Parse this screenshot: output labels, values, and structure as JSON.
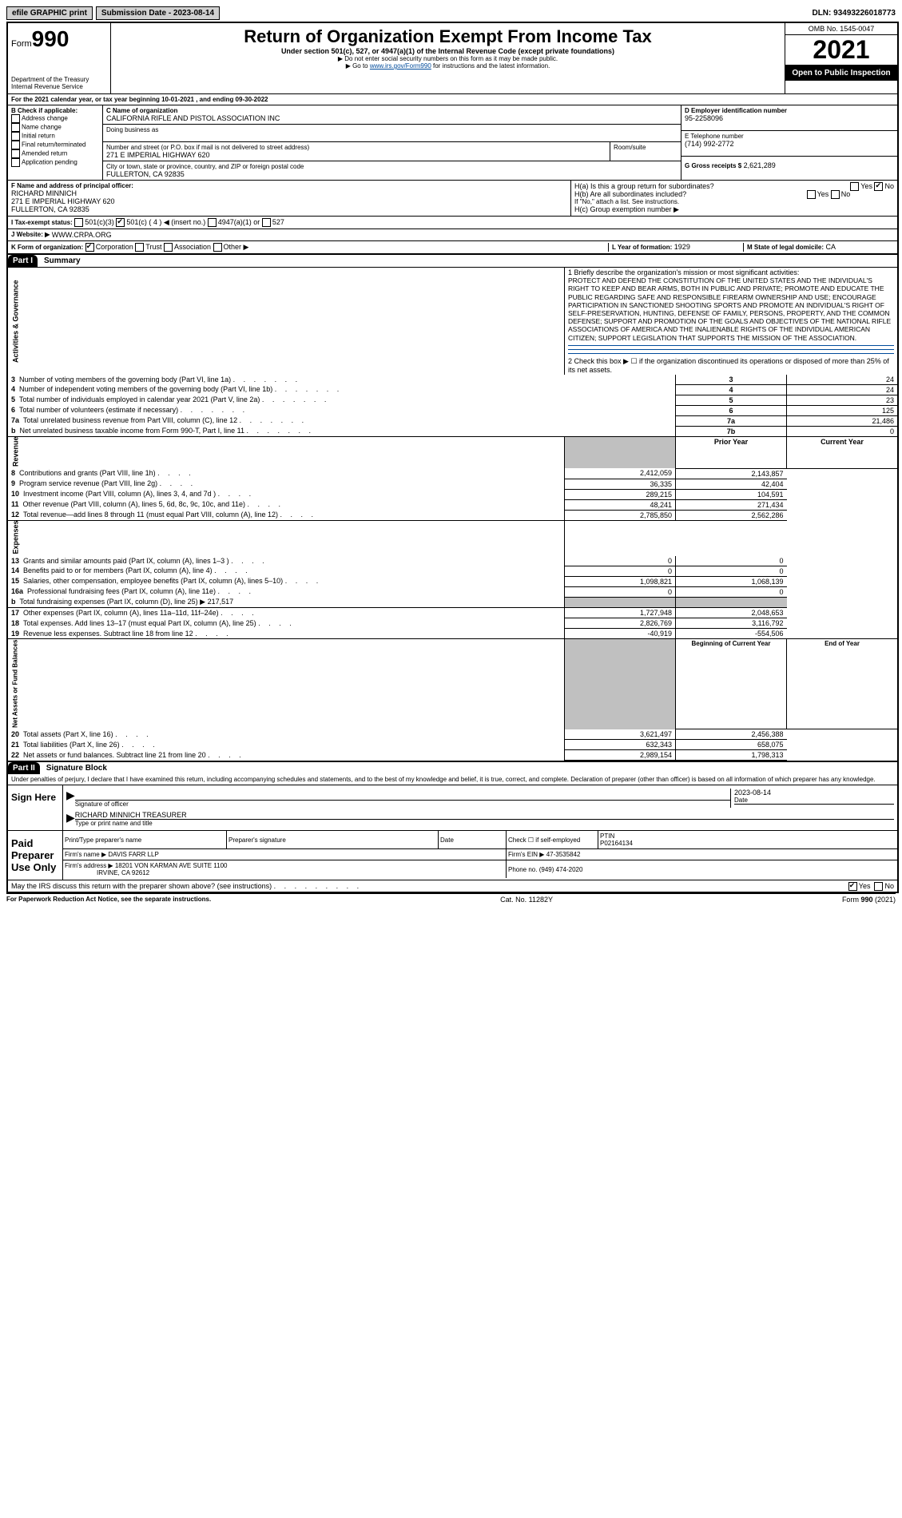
{
  "header": {
    "efile_label": "efile GRAPHIC print",
    "submission_label": "Submission Date - 2023-08-14",
    "dln_label": "DLN: 93493226018773"
  },
  "form_header": {
    "form_prefix": "Form",
    "form_number": "990",
    "dept": "Department of the Treasury Internal Revenue Service",
    "title": "Return of Organization Exempt From Income Tax",
    "subtitle": "Under section 501(c), 527, or 4947(a)(1) of the Internal Revenue Code (except private foundations)",
    "note1": "▶ Do not enter social security numbers on this form as it may be made public.",
    "note2_pre": "▶ Go to ",
    "note2_link": "www.irs.gov/Form990",
    "note2_post": " for instructions and the latest information.",
    "omb": "OMB No. 1545-0047",
    "year": "2021",
    "open_public": "Open to Public Inspection"
  },
  "line_A": "For the 2021 calendar year, or tax year beginning 10-01-2021  , and ending 09-30-2022",
  "box_B": {
    "header": "B Check if applicable:",
    "items": [
      "Address change",
      "Name change",
      "Initial return",
      "Final return/terminated",
      "Amended return",
      "Application pending"
    ]
  },
  "box_C": {
    "name_label": "C Name of organization",
    "name": "CALIFORNIA RIFLE AND PISTOL ASSOCIATION INC",
    "dba_label": "Doing business as",
    "dba": "",
    "addr_label": "Number and street (or P.O. box if mail is not delivered to street address)",
    "addr": "271 E IMPERIAL HIGHWAY 620",
    "room_label": "Room/suite",
    "room": "",
    "city_label": "City or town, state or province, country, and ZIP or foreign postal code",
    "city": "FULLERTON, CA  92835"
  },
  "box_D": {
    "label": "D Employer identification number",
    "val": "95-2258096"
  },
  "box_E": {
    "label": "E Telephone number",
    "val": "(714) 992-2772"
  },
  "box_G": {
    "label": "G Gross receipts $",
    "val": "2,621,289"
  },
  "box_F": {
    "label": "F  Name and address of principal officer:",
    "name": "RICHARD MINNICH",
    "addr1": "271 E IMPERIAL HIGHWAY 620",
    "addr2": "FULLERTON, CA  92835"
  },
  "box_H": {
    "a_label": "H(a)  Is this a group return for subordinates?",
    "b_label": "H(b)  Are all subordinates included?",
    "b_note": "If \"No,\" attach a list. See instructions.",
    "c_label": "H(c)  Group exemption number ▶",
    "yes": "Yes",
    "no": "No"
  },
  "line_I": {
    "label": "I    Tax-exempt status:",
    "opt1": "501(c)(3)",
    "opt2": "501(c) ( 4 ) ◀ (insert no.)",
    "opt3": "4947(a)(1) or",
    "opt4": "527"
  },
  "line_J": {
    "label": "J    Website: ▶",
    "val": "WWW.CRPA.ORG"
  },
  "line_K": {
    "label": "K Form of organization:",
    "opts": [
      "Corporation",
      "Trust",
      "Association",
      "Other ▶"
    ]
  },
  "line_L": {
    "label": "L Year of formation:",
    "val": "1929"
  },
  "line_M": {
    "label": "M State of legal domicile:",
    "val": "CA"
  },
  "partI": {
    "header": "Part I",
    "title": "Summary",
    "vert_labels": [
      "Activities & Governance",
      "Revenue",
      "Expenses",
      "Net Assets or Fund Balances"
    ],
    "line1_label": "1   Briefly describe the organization's mission or most significant activities:",
    "mission": "PROTECT AND DEFEND THE CONSTITUTION OF THE UNITED STATES AND THE INDIVIDUAL'S RIGHT TO KEEP AND BEAR ARMS, BOTH IN PUBLIC AND PRIVATE; PROMOTE AND EDUCATE THE PUBLIC REGARDING SAFE AND RESPONSIBLE FIREARM OWNERSHIP AND USE; ENCOURAGE PARTICIPATION IN SANCTIONED SHOOTING SPORTS AND PROMOTE AN INDIVIDUAL'S RIGHT OF SELF-PRESERVATION, HUNTING, DEFENSE OF FAMILY, PERSONS, PROPERTY, AND THE COMMON DEFENSE; SUPPORT AND PROMOTION OF THE GOALS AND OBJECTIVES OF THE NATIONAL RIFLE ASSOCIATIONS OF AMERICA AND THE INALIENABLE RIGHTS OF THE INDIVIDUAL AMERICAN CITIZEN; SUPPORT LEGISLATION THAT SUPPORTS THE MISSION OF THE ASSOCIATION.",
    "line2": "2   Check this box ▶ ☐ if the organization discontinued its operations or disposed of more than 25% of its net assets.",
    "rows_single": [
      {
        "n": "3",
        "label": "Number of voting members of the governing body (Part VI, line 1a)",
        "box": "3",
        "val": "24"
      },
      {
        "n": "4",
        "label": "Number of independent voting members of the governing body (Part VI, line 1b)",
        "box": "4",
        "val": "24"
      },
      {
        "n": "5",
        "label": "Total number of individuals employed in calendar year 2021 (Part V, line 2a)",
        "box": "5",
        "val": "23"
      },
      {
        "n": "6",
        "label": "Total number of volunteers (estimate if necessary)",
        "box": "6",
        "val": "125"
      },
      {
        "n": "7a",
        "label": "Total unrelated business revenue from Part VIII, column (C), line 12",
        "box": "7a",
        "val": "21,486"
      },
      {
        "n": " b",
        "label": "Net unrelated business taxable income from Form 990-T, Part I, line 11",
        "box": "7b",
        "val": "0"
      }
    ],
    "col_headers": {
      "prior": "Prior Year",
      "current": "Current Year"
    },
    "rows_double": [
      {
        "n": "8",
        "label": "Contributions and grants (Part VIII, line 1h)",
        "p": "2,412,059",
        "c": "2,143,857"
      },
      {
        "n": "9",
        "label": "Program service revenue (Part VIII, line 2g)",
        "p": "36,335",
        "c": "42,404"
      },
      {
        "n": "10",
        "label": "Investment income (Part VIII, column (A), lines 3, 4, and 7d )",
        "p": "289,215",
        "c": "104,591"
      },
      {
        "n": "11",
        "label": "Other revenue (Part VIII, column (A), lines 5, 6d, 8c, 9c, 10c, and 11e)",
        "p": "48,241",
        "c": "271,434"
      },
      {
        "n": "12",
        "label": "Total revenue—add lines 8 through 11 (must equal Part VIII, column (A), line 12)",
        "p": "2,785,850",
        "c": "2,562,286"
      },
      {
        "n": "13",
        "label": "Grants and similar amounts paid (Part IX, column (A), lines 1–3 )",
        "p": "0",
        "c": "0"
      },
      {
        "n": "14",
        "label": "Benefits paid to or for members (Part IX, column (A), line 4)",
        "p": "0",
        "c": "0"
      },
      {
        "n": "15",
        "label": "Salaries, other compensation, employee benefits (Part IX, column (A), lines 5–10)",
        "p": "1,098,821",
        "c": "1,068,139"
      },
      {
        "n": "16a",
        "label": "Professional fundraising fees (Part IX, column (A), line 11e)",
        "p": "0",
        "c": "0"
      }
    ],
    "line16b": {
      "n": "b",
      "label": "Total fundraising expenses (Part IX, column (D), line 25) ▶",
      "val": "217,517"
    },
    "rows_double2": [
      {
        "n": "17",
        "label": "Other expenses (Part IX, column (A), lines 11a–11d, 11f–24e)",
        "p": "1,727,948",
        "c": "2,048,653"
      },
      {
        "n": "18",
        "label": "Total expenses. Add lines 13–17 (must equal Part IX, column (A), line 25)",
        "p": "2,826,769",
        "c": "3,116,792"
      },
      {
        "n": "19",
        "label": "Revenue less expenses. Subtract line 18 from line 12",
        "p": "-40,919",
        "c": "-554,506"
      }
    ],
    "col_headers2": {
      "begin": "Beginning of Current Year",
      "end": "End of Year"
    },
    "rows_net": [
      {
        "n": "20",
        "label": "Total assets (Part X, line 16)",
        "p": "3,621,497",
        "c": "2,456,388"
      },
      {
        "n": "21",
        "label": "Total liabilities (Part X, line 26)",
        "p": "632,343",
        "c": "658,075"
      },
      {
        "n": "22",
        "label": "Net assets or fund balances. Subtract line 21 from line 20",
        "p": "2,989,154",
        "c": "1,798,313"
      }
    ]
  },
  "partII": {
    "header": "Part II",
    "title": "Signature Block",
    "declaration": "Under penalties of perjury, I declare that I have examined this return, including accompanying schedules and statements, and to the best of my knowledge and belief, it is true, correct, and complete. Declaration of preparer (other than officer) is based on all information of which preparer has any knowledge.",
    "sign_here": "Sign Here",
    "sig_officer_label": "Signature of officer",
    "sig_date_label": "Date",
    "sig_date": "2023-08-14",
    "officer_name": "RICHARD MINNICH  TREASURER",
    "officer_name_label": "Type or print name and title",
    "paid_preparer": "Paid Preparer Use Only",
    "prep_name_label": "Print/Type preparer's name",
    "prep_sig_label": "Preparer's signature",
    "prep_date_label": "Date",
    "prep_check_label": "Check ☐ if self-employed",
    "ptin_label": "PTIN",
    "ptin": "P02164134",
    "firm_name_label": "Firm's name    ▶",
    "firm_name": "DAVIS FARR LLP",
    "firm_ein_label": "Firm's EIN ▶",
    "firm_ein": "47-3535842",
    "firm_addr_label": "Firm's address ▶",
    "firm_addr1": "18201 VON KARMAN AVE SUITE 1100",
    "firm_addr2": "IRVINE, CA  92612",
    "phone_label": "Phone no.",
    "phone": "(949) 474-2020",
    "discuss": "May the IRS discuss this return with the preparer shown above? (see instructions)",
    "yes": "Yes",
    "no": "No"
  },
  "footer": {
    "left": "For Paperwork Reduction Act Notice, see the separate instructions.",
    "mid": "Cat. No. 11282Y",
    "right": "Form 990 (2021)"
  }
}
